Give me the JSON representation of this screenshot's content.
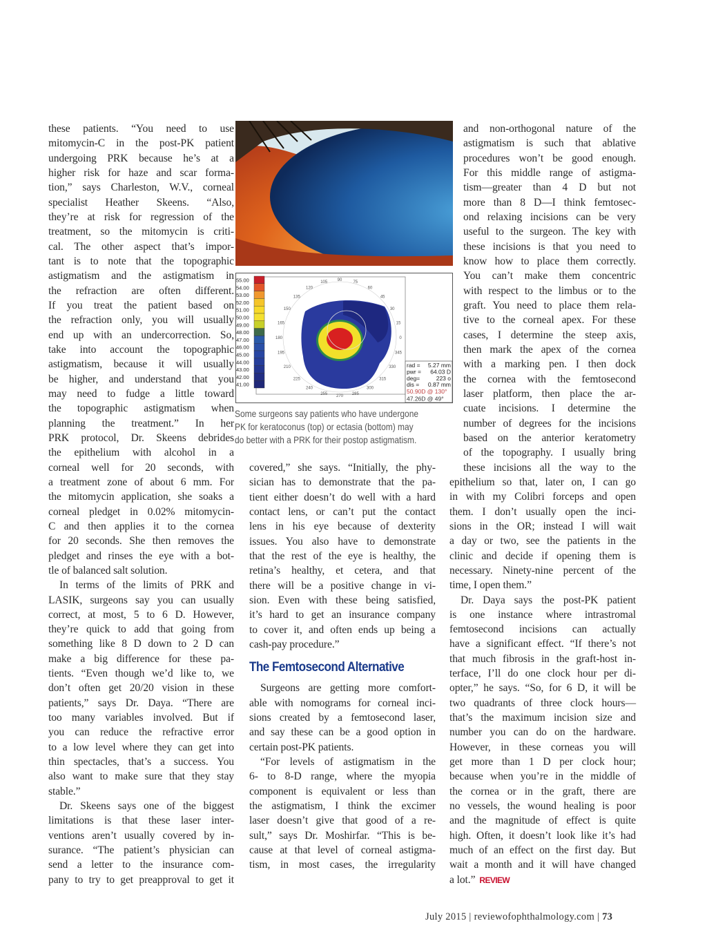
{
  "article": {
    "col1": [
      {
        "t": "these patients. “You need to use"
      },
      {
        "t": "mitomycin-C in the post-PK patient"
      },
      {
        "t": "undergoing PRK because he’s at a"
      },
      {
        "t": "higher risk for haze and scar forma-"
      },
      {
        "t": "tion,” says Charleston, W.V., corneal"
      },
      {
        "t": "specialist Heather Skeens. “Also,"
      },
      {
        "t": "they’re at risk for regression of the"
      },
      {
        "t": "treatment, so the mitomycin is criti-"
      },
      {
        "t": "cal. The other aspect that’s impor-"
      },
      {
        "t": "tant is to note that the topographic"
      },
      {
        "t": "astigmatism and the astigmatism in"
      },
      {
        "t": "the refraction are often different."
      },
      {
        "t": "If you treat the patient based on"
      },
      {
        "t": "the refraction only, you will usually"
      },
      {
        "t": "end up with an undercorrection. So,"
      },
      {
        "t": "take into account the topographic"
      },
      {
        "t": "astigmatism, because it will usually"
      },
      {
        "t": "be higher, and understand that you"
      },
      {
        "t": "may need to fudge a little toward"
      },
      {
        "t": "the topographic astigmatism when"
      },
      {
        "t": "planning the treatment.” In her"
      },
      {
        "t": "PRK protocol, Dr. Skeens debrides"
      },
      {
        "t": "the epithelium with alcohol in a"
      },
      {
        "t": "corneal well for 20 seconds, with"
      },
      {
        "t": "a treatment zone of about 6 mm. For"
      },
      {
        "t": "the mitomycin application, she soaks a"
      },
      {
        "t": "corneal pledget in 0.02% mitomycin-"
      },
      {
        "t": "C and then applies it to the cornea"
      },
      {
        "t": "for 20 seconds. She then removes the"
      },
      {
        "t": "pledget and rinses the eye with a bot-"
      },
      {
        "t": "tle of balanced salt solution.",
        "c": "last"
      },
      {
        "t": "In terms of the limits of PRK and",
        "c": "indent"
      },
      {
        "t": "LASIK, surgeons say you can usually"
      },
      {
        "t": "correct, at most, 5 to 6 D. However,"
      },
      {
        "t": "they’re quick to add that going from"
      },
      {
        "t": "something like 8 D down to 2 D can"
      },
      {
        "t": "make a big difference for these pa-"
      },
      {
        "t": "tients. “Even though we’d like to, we"
      },
      {
        "t": "don’t often get 20/20 vision in these"
      },
      {
        "t": "patients,” says Dr. Daya. “There are"
      },
      {
        "t": "too many variables involved. But if"
      },
      {
        "t": "you can reduce the refractive error"
      },
      {
        "t": "to a low level where they can get into"
      },
      {
        "t": "thin spectacles, that’s a success. You"
      },
      {
        "t": "also want to make sure that they stay"
      },
      {
        "t": "stable.”",
        "c": "last"
      },
      {
        "t": "Dr. Skeens says one of the biggest",
        "c": "indent"
      },
      {
        "t": "limitations is that these laser inter-"
      },
      {
        "t": "ventions aren’t usually covered by in-"
      },
      {
        "t": "surance. “The patient’s physician can"
      },
      {
        "t": "send a letter to the insurance com-"
      },
      {
        "t": "pany to try to get preapproval to get it"
      }
    ],
    "col2a": [
      {
        "t": "covered,” she says. “Initially, the phy-"
      },
      {
        "t": "sician has to demonstrate that the pa-"
      },
      {
        "t": "tient either doesn’t do well with a hard"
      },
      {
        "t": "contact lens, or can’t put the contact"
      },
      {
        "t": "lens in his eye because of dexterity"
      },
      {
        "t": "issues. You also have to demonstrate"
      },
      {
        "t": "that the rest of the eye is healthy, the"
      },
      {
        "t": "retina’s healthy, et cetera, and that"
      },
      {
        "t": "there will be a positive change in vi-"
      },
      {
        "t": "sion. Even with these being satisfied,"
      },
      {
        "t": "it’s hard to get an insurance company"
      },
      {
        "t": "to cover it, and often ends up being a"
      },
      {
        "t": "cash-pay procedure.”",
        "c": "last"
      }
    ],
    "heading": "The Femtosecond Alternative",
    "col2b": [
      {
        "t": "Surgeons are getting more comfort-",
        "c": "indent"
      },
      {
        "t": "able with nomograms for corneal inci-"
      },
      {
        "t": "sions created by a femtosecond laser,"
      },
      {
        "t": "and say these can be a good option in"
      },
      {
        "t": "certain post-PK patients.",
        "c": "last"
      },
      {
        "t": "“For levels of astigmatism in the",
        "c": "indent"
      },
      {
        "t": "6- to 8-D range, where the myopia"
      },
      {
        "t": "component is equivalent or less than"
      },
      {
        "t": "the astigmatism, I think the excimer"
      },
      {
        "t": "laser doesn’t give that good of a re-"
      },
      {
        "t": "sult,” says Dr. Moshirfar. “This is be-"
      },
      {
        "t": "cause at that level of corneal astigma-"
      },
      {
        "t": "tism, in most cases, the irregularity"
      }
    ],
    "col3": [
      {
        "t": "and non-orthogonal nature of the",
        "c": "narrow"
      },
      {
        "t": "astigmatism is such that ablative",
        "c": "narrow"
      },
      {
        "t": "procedures won’t be good enough.",
        "c": "narrow"
      },
      {
        "t": "For this middle range of astigma-",
        "c": "narrow"
      },
      {
        "t": "tism—greater than 4 D but not",
        "c": "narrow"
      },
      {
        "t": "more than 8 D—I think femtosec-",
        "c": "narrow"
      },
      {
        "t": "ond relaxing incisions can be very",
        "c": "narrow"
      },
      {
        "t": "useful to the surgeon. The key with",
        "c": "narrow"
      },
      {
        "t": "these incisions is that you need to",
        "c": "narrow"
      },
      {
        "t": "know how to place them correctly.",
        "c": "narrow"
      },
      {
        "t": "You can’t make them concentric",
        "c": "narrow"
      },
      {
        "t": "with respect to the limbus or to the",
        "c": "narrow"
      },
      {
        "t": "graft. You need to place them rela-",
        "c": "narrow"
      },
      {
        "t": "tive to the corneal apex. For these",
        "c": "narrow"
      },
      {
        "t": "cases, I determine the steep axis,",
        "c": "narrow"
      },
      {
        "t": "then mark the apex of the cornea",
        "c": "narrow"
      },
      {
        "t": "with a marking pen. I then dock",
        "c": "narrow"
      },
      {
        "t": "the cornea with the femtosecond",
        "c": "narrow"
      },
      {
        "t": "laser platform, then place the ar-",
        "c": "narrow"
      },
      {
        "t": "cuate incisions. I determine the",
        "c": "narrow"
      },
      {
        "t": "number of degrees for the incisions",
        "c": "narrow"
      },
      {
        "t": "based on the anterior keratometry",
        "c": "narrow"
      },
      {
        "t": "of the topography. I usually bring",
        "c": "narrow"
      },
      {
        "t": "these incisions all the way to the",
        "c": "narrow"
      },
      {
        "t": "epithelium so that, later on, I can go"
      },
      {
        "t": "in with my Colibri forceps and open"
      },
      {
        "t": "them. I don’t usually open the inci-"
      },
      {
        "t": "sions in the OR; instead I will wait"
      },
      {
        "t": "a day or two, see the patients in the"
      },
      {
        "t": "clinic and decide if opening them is"
      },
      {
        "t": "necessary. Ninety-nine percent of the"
      },
      {
        "t": "time, I open them.”",
        "c": "last"
      },
      {
        "t": "Dr. Daya says the post-PK patient",
        "c": "indent"
      },
      {
        "t": "is one instance where intrastromal"
      },
      {
        "t": "femtosecond incisions can actually"
      },
      {
        "t": "have a significant effect. “If there’s not"
      },
      {
        "t": "that much fibrosis in the graft-host in-"
      },
      {
        "t": "terface, I’ll do one clock hour per di-"
      },
      {
        "t": "opter,” he says. “So, for 6 D, it will be"
      },
      {
        "t": "two quadrants of three clock hours—"
      },
      {
        "t": "that’s the maximum incision size and"
      },
      {
        "t": "number you can do on the hardware."
      },
      {
        "t": "However, in these corneas you will"
      },
      {
        "t": "get more than 1 D per clock hour;"
      },
      {
        "t": "because when you’re in the middle of"
      },
      {
        "t": "the cornea or in the graft, there are"
      },
      {
        "t": "no vessels, the wound healing is poor"
      },
      {
        "t": "and the magnitude of effect is quite"
      },
      {
        "t": "high. Often, it doesn’t look like it’s had"
      },
      {
        "t": "much of an effect on the first day. But"
      },
      {
        "t": "wait a month and it will have changed"
      },
      {
        "t": "a lot.”",
        "c": "last"
      }
    ],
    "end_mark": "REVIEW"
  },
  "figure": {
    "caption": [
      "Some surgeons say patients who have undergone",
      "PK for keratoconus (top) or ectasia (bottom) may",
      "do better with a PRK for their postop astigmatism."
    ],
    "scale": [
      {
        "v": "55.00",
        "c": "#c8202a"
      },
      {
        "v": "54.00",
        "c": "#e2562a"
      },
      {
        "v": "53.00",
        "c": "#f0982e"
      },
      {
        "v": "52.00",
        "c": "#f5c52a"
      },
      {
        "v": "51.00",
        "c": "#f7d92a"
      },
      {
        "v": "50.00",
        "c": "#f4e030"
      },
      {
        "v": "49.00",
        "c": "#c8d02a"
      },
      {
        "v": "48.00",
        "c": "#3e6a4a"
      },
      {
        "v": "47.00",
        "c": "#2a5aa8"
      },
      {
        "v": "46.00",
        "c": "#2a50a8"
      },
      {
        "v": "45.00",
        "c": "#2846a2"
      },
      {
        "v": "44.00",
        "c": "#263e9a"
      },
      {
        "v": "43.00",
        "c": "#243690"
      },
      {
        "v": "42.00",
        "c": "#222e84"
      },
      {
        "v": "41.00",
        "c": "#202878"
      }
    ],
    "angles": [
      "90",
      "75",
      "60",
      "45",
      "30",
      "15",
      "0",
      "345",
      "330",
      "315",
      "300",
      "285",
      "270",
      "255",
      "240",
      "225",
      "210",
      "195",
      "180",
      "165",
      "150",
      "135",
      "120",
      "105"
    ],
    "readout": [
      {
        "k": "rad =",
        "v": "5.27 mm"
      },
      {
        "k": "pwr =",
        "v": "64.03  D"
      },
      {
        "k": "deg=",
        "v": "223  o"
      },
      {
        "k": "dis =",
        "v": "0.87 mm"
      }
    ],
    "k_steep": "50.90D @ 130°",
    "k_flat": "47.26D @ 49°"
  },
  "footer": {
    "date": "July 2015",
    "site": "reviewofophthalmology.com",
    "page": "73"
  }
}
